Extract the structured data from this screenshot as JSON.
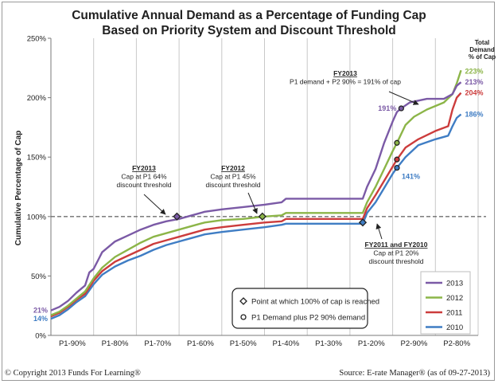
{
  "chart_data": {
    "type": "line",
    "title": "Cumulative Annual Demand as a Percentage of Funding Cap",
    "subtitle": "Based on Priority System and Discount Threshold",
    "ylabel": "Cumulative Percentage of Cap",
    "xlabel": "",
    "ylim": [
      0,
      250
    ],
    "yticks": [
      0,
      50,
      100,
      150,
      200,
      250
    ],
    "ytick_labels": [
      "0%",
      "50%",
      "100%",
      "150%",
      "200%",
      "250%"
    ],
    "xlim": [
      0,
      10
    ],
    "xticks": [
      0,
      1,
      2,
      3,
      4,
      5,
      6,
      7,
      8,
      9,
      10
    ],
    "xtick_labels": [
      "P1-90%",
      "P1-80%",
      "P1-70%",
      "P1-60%",
      "P1-50%",
      "P1-40%",
      "P1-30%",
      "P1-20%",
      "P2-90%",
      "P2-80%"
    ],
    "grid": "vertical",
    "reference_line": {
      "y": 100,
      "style": "dashed"
    },
    "legend_position": "bottom-right",
    "right_header": [
      "Total",
      "Demand",
      "% of Cap"
    ],
    "series": [
      {
        "name": "2013",
        "color": "#7b5aa6",
        "start_label": "21%",
        "end_label": "213%",
        "points": [
          [
            0,
            21
          ],
          [
            0.2,
            24
          ],
          [
            0.4,
            29
          ],
          [
            0.6,
            36
          ],
          [
            0.8,
            42
          ],
          [
            0.9,
            53
          ],
          [
            1.0,
            56
          ],
          [
            1.1,
            63
          ],
          [
            1.2,
            70
          ],
          [
            1.5,
            79
          ],
          [
            1.8,
            84
          ],
          [
            2.1,
            89
          ],
          [
            2.4,
            93
          ],
          [
            2.7,
            96
          ],
          [
            3.0,
            98
          ],
          [
            3.3,
            101
          ],
          [
            3.6,
            104
          ],
          [
            4.0,
            106
          ],
          [
            4.5,
            108
          ],
          [
            5.0,
            110
          ],
          [
            5.4,
            112
          ],
          [
            5.5,
            115
          ],
          [
            6,
            115
          ],
          [
            7,
            115
          ],
          [
            7.3,
            115
          ],
          [
            7.4,
            125
          ],
          [
            7.6,
            140
          ],
          [
            7.8,
            162
          ],
          [
            8.0,
            180
          ],
          [
            8.1,
            188
          ],
          [
            8.2,
            191
          ],
          [
            8.4,
            196
          ],
          [
            8.8,
            199
          ],
          [
            9.2,
            199
          ],
          [
            9.4,
            203
          ],
          [
            9.5,
            210
          ],
          [
            9.6,
            213
          ]
        ]
      },
      {
        "name": "2012",
        "color": "#8cb548",
        "end_label": "223%",
        "points": [
          [
            0,
            17
          ],
          [
            0.2,
            20
          ],
          [
            0.4,
            25
          ],
          [
            0.6,
            31
          ],
          [
            0.8,
            37
          ],
          [
            1.0,
            48
          ],
          [
            1.2,
            57
          ],
          [
            1.5,
            66
          ],
          [
            1.8,
            72
          ],
          [
            2.1,
            78
          ],
          [
            2.4,
            83
          ],
          [
            2.7,
            86
          ],
          [
            3.0,
            89
          ],
          [
            3.3,
            92
          ],
          [
            3.6,
            95
          ],
          [
            4.0,
            97
          ],
          [
            4.5,
            98
          ],
          [
            5.0,
            100
          ],
          [
            5.4,
            101
          ],
          [
            5.5,
            103
          ],
          [
            6,
            103
          ],
          [
            7,
            103
          ],
          [
            7.3,
            103
          ],
          [
            7.4,
            112
          ],
          [
            7.6,
            125
          ],
          [
            7.8,
            140
          ],
          [
            8.0,
            155
          ],
          [
            8.1,
            162
          ],
          [
            8.3,
            177
          ],
          [
            8.5,
            184
          ],
          [
            8.8,
            190
          ],
          [
            9.2,
            196
          ],
          [
            9.4,
            203
          ],
          [
            9.5,
            212
          ],
          [
            9.6,
            223
          ]
        ]
      },
      {
        "name": "2011",
        "color": "#cc3c3c",
        "end_label": "204%",
        "points": [
          [
            0,
            16
          ],
          [
            0.2,
            19
          ],
          [
            0.4,
            24
          ],
          [
            0.6,
            30
          ],
          [
            0.8,
            35
          ],
          [
            1.0,
            46
          ],
          [
            1.2,
            54
          ],
          [
            1.5,
            62
          ],
          [
            1.8,
            67
          ],
          [
            2.1,
            72
          ],
          [
            2.4,
            77
          ],
          [
            2.7,
            80
          ],
          [
            3.0,
            83
          ],
          [
            3.3,
            86
          ],
          [
            3.6,
            89
          ],
          [
            4.0,
            91
          ],
          [
            4.5,
            93
          ],
          [
            5.0,
            95
          ],
          [
            5.4,
            96
          ],
          [
            5.5,
            98
          ],
          [
            6,
            98
          ],
          [
            7,
            98
          ],
          [
            7.3,
            98
          ],
          [
            7.4,
            107
          ],
          [
            7.6,
            118
          ],
          [
            7.8,
            130
          ],
          [
            8.0,
            142
          ],
          [
            8.1,
            148
          ],
          [
            8.3,
            158
          ],
          [
            8.6,
            165
          ],
          [
            9.0,
            172
          ],
          [
            9.3,
            176
          ],
          [
            9.4,
            190
          ],
          [
            9.5,
            200
          ],
          [
            9.6,
            204
          ]
        ]
      },
      {
        "name": "2010",
        "color": "#3f7dc4",
        "start_label": "14%",
        "end_label": "186%",
        "points": [
          [
            0,
            14
          ],
          [
            0.2,
            17
          ],
          [
            0.4,
            22
          ],
          [
            0.6,
            28
          ],
          [
            0.8,
            33
          ],
          [
            1.0,
            43
          ],
          [
            1.2,
            51
          ],
          [
            1.5,
            58
          ],
          [
            1.8,
            63
          ],
          [
            2.1,
            67
          ],
          [
            2.4,
            72
          ],
          [
            2.7,
            76
          ],
          [
            3.0,
            79
          ],
          [
            3.3,
            82
          ],
          [
            3.6,
            85
          ],
          [
            4.0,
            87
          ],
          [
            4.5,
            89
          ],
          [
            5.0,
            91
          ],
          [
            5.4,
            93
          ],
          [
            5.5,
            94
          ],
          [
            6,
            94
          ],
          [
            7,
            94
          ],
          [
            7.3,
            94
          ],
          [
            7.4,
            103
          ],
          [
            7.6,
            112
          ],
          [
            7.8,
            124
          ],
          [
            8.0,
            136
          ],
          [
            8.1,
            141
          ],
          [
            8.3,
            150
          ],
          [
            8.6,
            160
          ],
          [
            9.0,
            165
          ],
          [
            9.3,
            168
          ],
          [
            9.4,
            176
          ],
          [
            9.5,
            183
          ],
          [
            9.6,
            186
          ]
        ]
      }
    ],
    "diamond_markers": [
      {
        "series": "2013",
        "x": 2.95,
        "y": 100
      },
      {
        "series": "2012",
        "x": 4.95,
        "y": 100
      },
      {
        "series": "2010",
        "x": 7.3,
        "y": 95
      }
    ],
    "circle_markers": [
      {
        "series": "2013",
        "x": 8.2,
        "y": 191,
        "label": "191%"
      },
      {
        "series": "2012",
        "x": 8.1,
        "y": 162
      },
      {
        "series": "2011",
        "x": 8.1,
        "y": 148
      },
      {
        "series": "2010",
        "x": 8.1,
        "y": 141,
        "label": "141%"
      }
    ],
    "annotations": [
      {
        "id": "fy2013a",
        "lines": [
          {
            "t": "FY2013",
            "b": true
          },
          {
            "t": "Cap at P1 64%"
          },
          {
            "t": "discount threshold"
          }
        ]
      },
      {
        "id": "fy2012",
        "lines": [
          {
            "t": "FY2012",
            "b": true
          },
          {
            "t": "Cap at P1 45%"
          },
          {
            "t": "discount threshold"
          }
        ]
      },
      {
        "id": "fy2013b",
        "lines": [
          {
            "t": "FY2013",
            "b": true
          },
          {
            "t": "P1 demand + P2 90% = 191% of cap"
          }
        ]
      },
      {
        "id": "fy2011",
        "lines": [
          {
            "t": "FY2011 and FY2010",
            "b": true
          },
          {
            "t": "Cap at P1 20%"
          },
          {
            "t": "discount threshold"
          }
        ]
      }
    ],
    "key_box": {
      "diamond_text": "Point at which 100% of cap is reached",
      "circle_text": "P1 Demand plus P2 90% demand"
    }
  },
  "footer": {
    "left": "© Copyright 2013 Funds For Learning®",
    "right": "Source: E-rate Manager® (as of 09-27-2013)"
  }
}
